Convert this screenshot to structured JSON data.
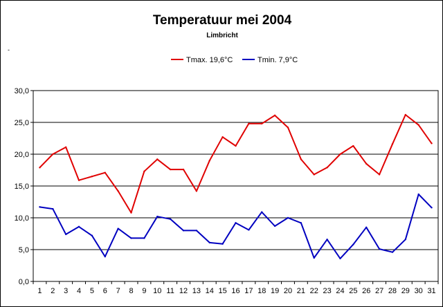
{
  "chart_data": {
    "type": "line",
    "title": "Temperatuur mei 2004",
    "subtitle": "Limbricht",
    "stray_mark": "-",
    "xlabel": "",
    "ylabel": "",
    "ylim": [
      0,
      30
    ],
    "y_ticks": [
      "0,0",
      "5,0",
      "10,0",
      "15,0",
      "20,0",
      "25,0",
      "30,0"
    ],
    "grid": true,
    "legend_position": "top-center",
    "x": [
      1,
      2,
      3,
      4,
      5,
      6,
      7,
      8,
      9,
      10,
      11,
      12,
      13,
      14,
      15,
      16,
      17,
      18,
      19,
      20,
      21,
      22,
      23,
      24,
      25,
      26,
      27,
      28,
      29,
      30,
      31
    ],
    "series": [
      {
        "name": "Tmax. 19,6°C",
        "color": "#e00000",
        "values": [
          17.9,
          20.0,
          21.1,
          15.9,
          16.5,
          17.1,
          14.2,
          10.8,
          17.3,
          19.2,
          17.6,
          17.6,
          14.2,
          19.0,
          22.7,
          21.3,
          24.8,
          24.8,
          26.1,
          24.2,
          19.2,
          16.8,
          17.9,
          20.0,
          21.3,
          18.5,
          16.8,
          21.6,
          26.2,
          24.6,
          21.7
        ]
      },
      {
        "name": "Tmin. 7,9°C",
        "color": "#0000c0",
        "values": [
          11.7,
          11.4,
          7.4,
          8.6,
          7.2,
          3.9,
          8.3,
          6.8,
          6.8,
          10.2,
          9.8,
          8.0,
          8.0,
          6.1,
          5.9,
          9.2,
          8.1,
          10.9,
          8.7,
          10.0,
          9.2,
          3.7,
          6.6,
          3.6,
          5.8,
          8.5,
          5.1,
          4.6,
          6.6,
          13.7,
          11.6
        ]
      }
    ]
  }
}
